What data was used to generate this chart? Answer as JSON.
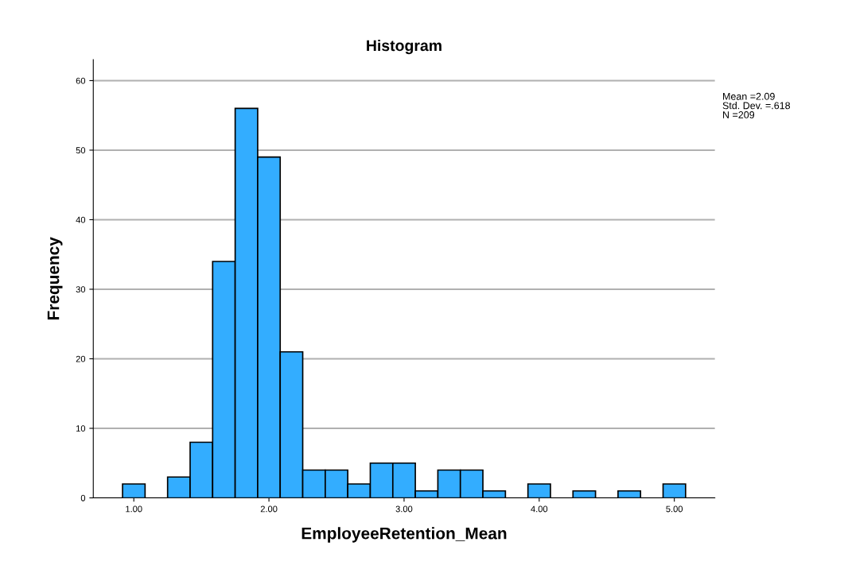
{
  "chart_data": {
    "type": "histogram",
    "title": "Histogram",
    "xlabel": "EmployeeRetention_Mean",
    "ylabel": "Frequency",
    "bins": [
      0.9167,
      1.0833,
      1.25,
      1.4167,
      1.5833,
      1.75,
      1.9167,
      2.0833,
      2.25,
      2.4167,
      2.5833,
      2.75,
      2.9167,
      3.0833,
      3.25,
      3.4167,
      3.5833,
      3.75,
      3.9167,
      4.0833,
      4.25,
      4.4167,
      4.5833,
      4.75,
      4.9167,
      5.0833
    ],
    "values": [
      2,
      0,
      3,
      8,
      34,
      56,
      49,
      21,
      4,
      4,
      2,
      5,
      5,
      1,
      4,
      4,
      1,
      0,
      2,
      0,
      1,
      0,
      1,
      0,
      2
    ],
    "color": "#33adff",
    "xlim": [
      0.7,
      5.3
    ],
    "ylim": [
      0,
      63
    ],
    "xticks": [
      {
        "value": 1,
        "label": "1.00"
      },
      {
        "value": 2,
        "label": "2.00"
      },
      {
        "value": 3,
        "label": "3.00"
      },
      {
        "value": 4,
        "label": "4.00"
      },
      {
        "value": 5,
        "label": "5.00"
      }
    ],
    "yticks": [
      0,
      10,
      20,
      30,
      40,
      50,
      60
    ],
    "grid": "y",
    "annotations": [
      "Mean =2.09",
      "Std. Dev. =.618",
      "N =209"
    ]
  }
}
